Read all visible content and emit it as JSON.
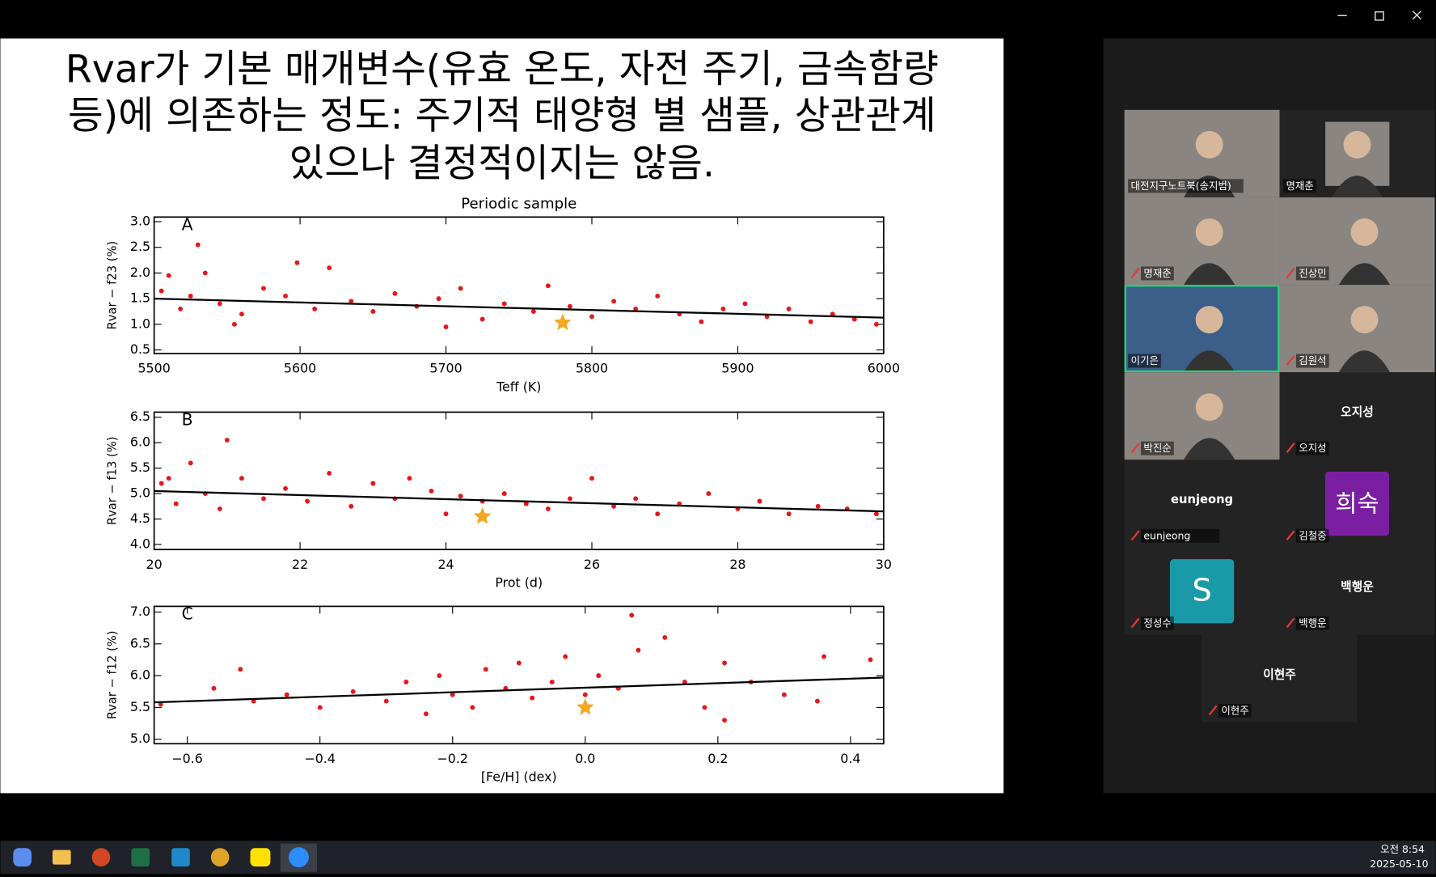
{
  "slide": {
    "title_lines": [
      "Rvar가 기본 매개변수(유효 온도, 자전 주기, 금속함량",
      "등)에 의존하는 정도: 주기적 태양형 별 샘플, 상관관계",
      "있으나 결정적이지는 않음."
    ]
  },
  "chart_data": [
    {
      "type": "scatter",
      "title": "Periodic sample",
      "panel": "A",
      "x_label": "Teff (K)",
      "y_label": "Rvar − f23 (%)",
      "xlim": [
        5500,
        6000
      ],
      "xticks": [
        5500,
        5600,
        5700,
        5800,
        5900,
        6000
      ],
      "ylim": [
        0.43,
        3.09
      ],
      "yticks": [
        0.5,
        {
          "value": 1.0,
          "label": "1.0"
        },
        1.5,
        {
          "value": 2.0,
          "label": "2.0"
        },
        2.5,
        {
          "value": 3.0,
          "label": "3.0"
        }
      ],
      "points": {
        "color": "#e8151b",
        "x": [
          5505,
          5510,
          5518,
          5525,
          5530,
          5535,
          5545,
          5560,
          5575,
          5590,
          5598,
          5610,
          5620,
          5635,
          5650,
          5665,
          5680,
          5695,
          5710,
          5725,
          5740,
          5760,
          5770,
          5785,
          5800,
          5815,
          5830,
          5845,
          5860,
          5875,
          5890,
          5905,
          5920,
          5935,
          5950,
          5965,
          5980,
          5995,
          5555,
          5700
        ],
        "y": [
          1.65,
          1.95,
          1.3,
          1.55,
          2.55,
          2.0,
          1.4,
          1.2,
          1.7,
          1.55,
          2.2,
          1.3,
          2.1,
          1.45,
          1.25,
          1.6,
          1.35,
          1.5,
          1.7,
          1.1,
          1.4,
          1.25,
          1.75,
          1.35,
          1.15,
          1.45,
          1.3,
          1.55,
          1.2,
          1.05,
          1.3,
          1.4,
          1.15,
          1.3,
          1.05,
          1.2,
          1.1,
          1.0,
          1.0,
          0.95
        ]
      },
      "highlight": {
        "color": "#f5a623",
        "x": [
          5780
        ],
        "y": [
          1.03
        ]
      },
      "fit": {
        "color": "#000000",
        "x": [
          5500,
          6000
        ],
        "y": [
          1.5,
          1.13
        ]
      }
    },
    {
      "type": "scatter",
      "panel": "B",
      "x_label": "Prot (d)",
      "y_label": "Rvar − f13 (%)",
      "xlim": [
        20,
        30
      ],
      "xticks": [
        20,
        22,
        24,
        26,
        28,
        30
      ],
      "ylim": [
        3.9,
        6.6
      ],
      "yticks": [
        {
          "value": 4.0,
          "label": "4.0"
        },
        4.5,
        {
          "value": 5.0,
          "label": "5.0"
        },
        5.5,
        {
          "value": 6.0,
          "label": "6.0"
        },
        6.5
      ],
      "points": {
        "color": "#e8151b",
        "x": [
          20.1,
          20.3,
          20.5,
          20.7,
          20.9,
          21.0,
          21.2,
          21.5,
          21.8,
          22.1,
          22.4,
          22.7,
          23.0,
          23.3,
          23.5,
          23.8,
          24.0,
          24.2,
          24.5,
          24.8,
          25.1,
          25.4,
          25.7,
          26.0,
          26.3,
          26.6,
          26.9,
          27.2,
          27.6,
          28.0,
          28.3,
          28.7,
          29.1,
          29.5,
          29.9,
          20.2
        ],
        "y": [
          5.2,
          4.8,
          5.6,
          5.0,
          4.7,
          6.05,
          5.3,
          4.9,
          5.1,
          4.85,
          5.4,
          4.75,
          5.2,
          4.9,
          5.3,
          5.05,
          4.6,
          4.95,
          4.85,
          5.0,
          4.8,
          4.7,
          4.9,
          5.3,
          4.75,
          4.9,
          4.6,
          4.8,
          5.0,
          4.7,
          4.85,
          4.6,
          4.75,
          4.7,
          4.6,
          5.3
        ]
      },
      "highlight": {
        "color": "#f5a623",
        "x": [
          24.5
        ],
        "y": [
          4.55
        ]
      },
      "fit": {
        "color": "#000000",
        "x": [
          20,
          30
        ],
        "y": [
          5.05,
          4.65
        ]
      }
    },
    {
      "type": "scatter",
      "panel": "C",
      "x_label": "[Fe/H] (dex)",
      "y_label": "Rvar − f12 (%)",
      "xlim": [
        -0.65,
        0.45
      ],
      "xticks": [
        {
          "value": -0.6,
          "label": "−0.6"
        },
        {
          "value": -0.4,
          "label": "−0.4"
        },
        {
          "value": -0.2,
          "label": "−0.2"
        },
        {
          "value": 0,
          "label": "0.0"
        },
        0.2,
        0.4
      ],
      "ylim": [
        4.93,
        7.09
      ],
      "yticks": [
        {
          "value": 5.0,
          "label": "5.0"
        },
        5.5,
        {
          "value": 6.0,
          "label": "6.0"
        },
        6.5,
        {
          "value": 7.0,
          "label": "7.0"
        }
      ],
      "points": {
        "color": "#e8151b",
        "x": [
          -0.64,
          -0.56,
          -0.52,
          -0.5,
          -0.45,
          -0.4,
          -0.35,
          -0.3,
          -0.27,
          -0.24,
          -0.22,
          -0.2,
          -0.17,
          -0.15,
          -0.12,
          -0.1,
          -0.08,
          -0.05,
          -0.03,
          0.0,
          0.02,
          0.05,
          0.07,
          0.08,
          0.12,
          0.15,
          0.18,
          0.21,
          0.21,
          0.25,
          0.3,
          0.36,
          0.43,
          0.35
        ],
        "y": [
          5.55,
          5.8,
          6.1,
          5.6,
          5.7,
          5.5,
          5.75,
          5.6,
          5.9,
          5.4,
          6.0,
          5.7,
          5.5,
          6.1,
          5.8,
          6.2,
          5.65,
          5.9,
          6.3,
          5.7,
          6.0,
          5.8,
          6.95,
          6.4,
          6.6,
          5.9,
          5.5,
          6.2,
          5.3,
          5.9,
          5.7,
          6.3,
          6.25,
          5.6
        ]
      },
      "highlight": {
        "color": "#f5a623",
        "x": [
          0.0
        ],
        "y": [
          5.5
        ]
      },
      "fit": {
        "color": "#000000",
        "x": [
          -0.65,
          0.45
        ],
        "y": [
          5.58,
          5.97
        ]
      }
    }
  ],
  "participants": [
    {
      "name": "대전지구노트북(송지범)",
      "video": true,
      "muted": false
    },
    {
      "name": "명재춘",
      "video": true,
      "muted": false
    },
    {
      "name": "명재춘",
      "video": true,
      "muted": true
    },
    {
      "name": "진상민",
      "video": true,
      "muted": true
    },
    {
      "name": "이기은",
      "video": true,
      "muted": false,
      "active": true
    },
    {
      "name": "김원석",
      "video": true,
      "muted": true
    },
    {
      "name": "박진순",
      "video": true,
      "muted": true
    },
    {
      "name": "오지성",
      "center_text": "오지성",
      "muted": true
    },
    {
      "name": "eunjeong",
      "center_text": "eunjeong",
      "muted": true
    },
    {
      "name": "김철중",
      "avatar": "희숙",
      "avatar_color": "#7b1fa2",
      "muted": true
    },
    {
      "name": "정성수",
      "avatar": "S",
      "avatar_color": "#1a9aa8",
      "muted": true
    },
    {
      "name": "백행운",
      "center_text": "백행운",
      "muted": true
    },
    {
      "name": "이현주",
      "center_text": "이현주",
      "muted": true
    }
  ],
  "taskbar": {
    "time": "오전 8:54",
    "date": "2025-05-10"
  }
}
